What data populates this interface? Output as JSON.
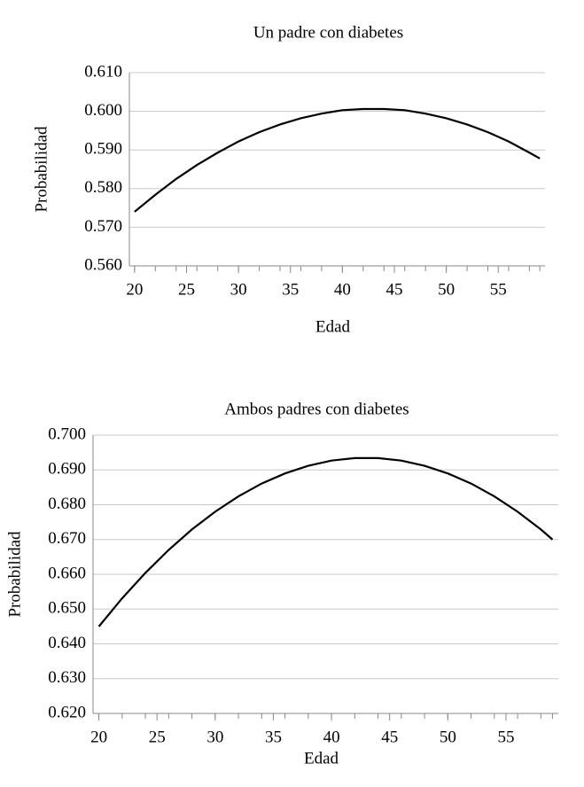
{
  "chart_data": [
    {
      "type": "line",
      "title": "Un padre con diabetes",
      "x_label": "Edad",
      "y_label": "Probabilidad",
      "x": [
        20,
        22,
        24,
        26,
        28,
        30,
        32,
        34,
        36,
        38,
        40,
        42,
        44,
        46,
        48,
        50,
        52,
        54,
        56,
        58,
        59
      ],
      "series": [
        {
          "color": "#000000",
          "values": [
            0.574,
            0.5784,
            0.5825,
            0.5861,
            0.5893,
            0.5922,
            0.5946,
            0.5966,
            0.5982,
            0.5994,
            0.6003,
            0.6006,
            0.6006,
            0.6003,
            0.5994,
            0.5982,
            0.5966,
            0.5946,
            0.5922,
            0.5893,
            0.5878
          ]
        }
      ],
      "xlim": [
        19.5,
        59.5
      ],
      "xticks": [
        20,
        25,
        30,
        35,
        40,
        45,
        50,
        55
      ],
      "ylim": [
        0.56,
        0.61
      ],
      "yticks": [
        {
          "value": 0.56,
          "label": "0.560"
        },
        {
          "value": 0.57,
          "label": "0.570"
        },
        {
          "value": 0.58,
          "label": "0.580"
        },
        {
          "value": 0.59,
          "label": "0.590"
        },
        {
          "value": 0.6,
          "label": "0.600"
        },
        {
          "value": 0.61,
          "label": "0.610"
        }
      ],
      "grid": true
    },
    {
      "type": "line",
      "title": "Ambos padres con diabetes",
      "x_label": "Edad",
      "y_label": "Probabilidad",
      "x": [
        20,
        22,
        24,
        26,
        28,
        30,
        32,
        34,
        36,
        38,
        40,
        42,
        44,
        46,
        48,
        50,
        52,
        54,
        56,
        58,
        59
      ],
      "series": [
        {
          "color": "#000000",
          "values": [
            0.645,
            0.6531,
            0.6604,
            0.667,
            0.6729,
            0.678,
            0.6824,
            0.6861,
            0.689,
            0.6912,
            0.6927,
            0.6934,
            0.6934,
            0.6927,
            0.6912,
            0.689,
            0.6861,
            0.6824,
            0.678,
            0.6729,
            0.67
          ]
        }
      ],
      "xlim": [
        19.5,
        59.5
      ],
      "xticks": [
        20,
        25,
        30,
        35,
        40,
        45,
        50,
        55
      ],
      "ylim": [
        0.62,
        0.7
      ],
      "yticks": [
        {
          "value": 0.62,
          "label": "0.620"
        },
        {
          "value": 0.63,
          "label": "0.630"
        },
        {
          "value": 0.64,
          "label": "0.640"
        },
        {
          "value": 0.65,
          "label": "0.650"
        },
        {
          "value": 0.66,
          "label": "0.660"
        },
        {
          "value": 0.67,
          "label": "0.670"
        },
        {
          "value": 0.68,
          "label": "0.680"
        },
        {
          "value": 0.69,
          "label": "0.690"
        },
        {
          "value": 0.7,
          "label": "0.700"
        }
      ],
      "grid": true
    }
  ]
}
